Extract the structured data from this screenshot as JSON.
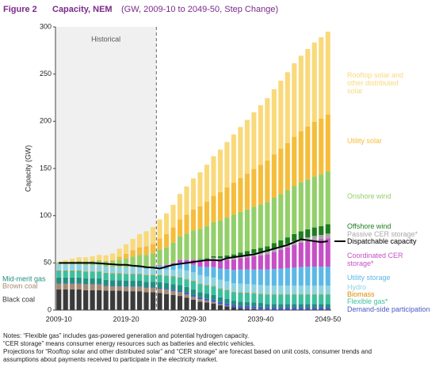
{
  "chart_data": {
    "type": "bar",
    "figure_label": "Figure 2",
    "title": "Capacity, NEM",
    "subtitle": "(GW, 2009-10 to 2049-50, Step Change)",
    "y_label": "Capacity (GW)",
    "annotation": "Historical",
    "stacked": true,
    "ylim": [
      0,
      300
    ],
    "yticks": [
      0,
      50,
      100,
      150,
      200,
      250,
      300
    ],
    "categories": [
      "2009-10",
      null,
      null,
      null,
      null,
      null,
      null,
      null,
      null,
      null,
      "2019-20",
      null,
      null,
      null,
      null,
      null,
      null,
      null,
      null,
      null,
      "2029-30",
      null,
      null,
      null,
      null,
      null,
      null,
      null,
      null,
      null,
      "2039-40",
      null,
      null,
      null,
      null,
      null,
      null,
      null,
      null,
      null,
      "2049-50"
    ],
    "series": [
      {
        "name": "Black coal",
        "color": "#3a3a3a",
        "values": [
          22,
          22,
          22,
          22,
          21,
          21,
          21,
          20.5,
          20.5,
          20.5,
          20,
          20,
          20,
          19,
          19,
          18,
          17,
          16,
          15,
          13,
          11,
          9,
          8,
          7,
          5,
          4,
          3,
          2,
          1.5,
          1,
          0.5,
          0,
          0,
          0,
          0,
          0,
          0,
          0,
          0,
          0,
          0
        ]
      },
      {
        "name": "Brown coal",
        "color": "#a68a70",
        "values": [
          6,
          6,
          6,
          6,
          6,
          6,
          6,
          5,
          4.5,
          4.5,
          4.5,
          4.5,
          4.5,
          4.5,
          4.5,
          4.5,
          4.5,
          4,
          4,
          3.5,
          3,
          2.5,
          2,
          1.5,
          1,
          0.5,
          0,
          0,
          0,
          0,
          0,
          0,
          0,
          0,
          0,
          0,
          0,
          0,
          0,
          0,
          0
        ]
      },
      {
        "name": "Demand-side participation",
        "color": "#4a5bc4",
        "values": [
          0.5,
          0.5,
          0.5,
          0.5,
          0.5,
          0.5,
          0.5,
          0.5,
          0.5,
          0.5,
          0.5,
          0.5,
          0.5,
          0.5,
          0.5,
          1,
          1,
          1.5,
          1.5,
          2,
          2,
          2,
          2,
          2.5,
          2.5,
          2.5,
          2.5,
          2.5,
          3,
          3,
          3,
          3,
          3,
          3,
          3,
          3,
          3,
          3,
          3,
          3,
          3
        ]
      },
      {
        "name": "Mid-merit gas",
        "color": "#1f8f80",
        "values": [
          6,
          6,
          6,
          6,
          6,
          6,
          6,
          6,
          6,
          6,
          6,
          6,
          6,
          6,
          6,
          6,
          6,
          6,
          6,
          6,
          6,
          5.5,
          5.5,
          5,
          5,
          5,
          4.5,
          4.5,
          4,
          4,
          4,
          3.5,
          3.5,
          3.5,
          3.5,
          3.5,
          3.5,
          3.5,
          3.5,
          3.5,
          3.5
        ]
      },
      {
        "name": "Flexible gas*",
        "color": "#3cbf9f",
        "values": [
          7,
          7,
          7,
          7,
          7,
          7,
          7,
          7,
          7,
          7,
          7,
          7,
          7,
          7,
          7,
          7.5,
          7.5,
          8,
          8,
          8,
          8.5,
          8.5,
          8.5,
          9,
          9,
          9,
          9,
          9.5,
          9.5,
          9.5,
          9.5,
          10,
          10,
          10,
          10,
          10,
          10,
          10,
          10,
          10,
          10
        ]
      },
      {
        "name": "Biomass",
        "color": "#e08a00",
        "values": [
          0.5,
          0.5,
          0.5,
          0.5,
          0.5,
          0.5,
          0.5,
          0.5,
          0.5,
          0.5,
          0.5,
          0.5,
          0.5,
          0.5,
          0.5,
          0.5,
          0.5,
          0.5,
          0.5,
          0.5,
          0.5,
          0.5,
          0.5,
          0.5,
          0.5,
          0.5,
          0.5,
          0.5,
          0.5,
          0.5,
          0.5,
          0.5,
          0.5,
          0.5,
          0.5,
          0.5,
          0.5,
          0.5,
          0.5,
          0.5,
          0.5
        ]
      },
      {
        "name": "Hydro",
        "color": "#8fd3e0",
        "values": [
          6.5,
          6.5,
          6.5,
          6.5,
          6.5,
          6.5,
          6.5,
          6.5,
          6.5,
          6.5,
          6.5,
          6.5,
          6.5,
          6.5,
          6.5,
          6.5,
          6.5,
          6.5,
          9,
          9,
          9,
          9,
          9,
          9,
          9,
          9,
          9,
          9,
          9,
          9,
          9,
          9,
          9,
          9,
          9,
          9,
          9,
          9,
          9,
          9,
          9
        ]
      },
      {
        "name": "Utility storage",
        "color": "#5bb8e6",
        "values": [
          0,
          0,
          0,
          0,
          0,
          0,
          0,
          0,
          0,
          0,
          0.2,
          0.5,
          1,
          1.5,
          2,
          3,
          4,
          5,
          6,
          7,
          8,
          9,
          10,
          11,
          12,
          13,
          14,
          15,
          15.5,
          16,
          16.5,
          17,
          17.5,
          18,
          18.5,
          19,
          19.5,
          20,
          20,
          20,
          20
        ]
      },
      {
        "name": "Coordinated CER storage*",
        "color": "#c64fc6",
        "values": [
          0,
          0,
          0,
          0,
          0,
          0,
          0,
          0,
          0,
          0,
          0,
          0,
          0,
          0,
          0,
          0.5,
          1,
          2,
          3,
          4,
          5,
          6,
          7,
          8,
          9,
          10,
          11,
          12,
          13,
          14,
          15,
          16,
          18,
          20,
          22,
          24,
          26,
          27,
          28,
          29,
          30
        ]
      },
      {
        "name": "Passive CER storage*",
        "color": "#a8a8a8",
        "values": [
          0,
          0,
          0,
          0,
          0,
          0,
          0,
          0,
          0,
          0,
          0,
          0,
          0,
          0,
          0,
          0.5,
          0.5,
          1,
          1,
          1,
          1.5,
          1.5,
          1.5,
          2,
          2,
          2,
          2.5,
          2.5,
          2.5,
          3,
          3,
          3,
          3.5,
          3.5,
          3.5,
          4,
          4,
          4,
          4.5,
          4.5,
          5
        ]
      },
      {
        "name": "Offshore wind",
        "color": "#1e7d1e",
        "values": [
          0,
          0,
          0,
          0,
          0,
          0,
          0,
          0,
          0,
          0,
          0,
          0,
          0,
          0,
          0,
          0,
          0,
          0,
          0,
          0,
          0,
          0.5,
          1,
          1.5,
          2,
          2.5,
          3,
          3.5,
          4,
          4.5,
          5,
          5.5,
          6,
          6.5,
          7,
          7.5,
          8,
          8.5,
          9,
          9.5,
          10
        ]
      },
      {
        "name": "Onshore wind",
        "color": "#93cf6a",
        "values": [
          2,
          2.5,
          3,
          3.5,
          4,
          4.5,
          5,
          5.5,
          6.5,
          8,
          9.5,
          11,
          12.5,
          13,
          14,
          16,
          18,
          21,
          24,
          27,
          30,
          32,
          34,
          36,
          38,
          40,
          42,
          43,
          44,
          45,
          46,
          47,
          48,
          49,
          50,
          51,
          52,
          53,
          54,
          55,
          56
        ]
      },
      {
        "name": "Utility solar",
        "color": "#f5bd3a",
        "values": [
          0,
          0,
          0,
          0,
          0,
          0,
          0.5,
          0.5,
          1,
          3,
          5,
          7,
          8,
          9,
          10,
          12,
          14,
          16,
          18,
          20,
          22,
          24,
          26,
          28,
          30,
          32,
          34,
          36,
          38,
          40,
          42,
          44,
          46,
          48,
          50,
          52,
          54,
          56,
          58,
          59,
          60
        ]
      },
      {
        "name": "Rooftop solar and other distributed solar",
        "color": "#f9d97a",
        "values": [
          1,
          2,
          3,
          4,
          4.5,
          5,
          5.5,
          6,
          7,
          8.5,
          10,
          12,
          14,
          16,
          18,
          20,
          22,
          24,
          27,
          30,
          33,
          36,
          39,
          42,
          45,
          48,
          51,
          54,
          57,
          60,
          63,
          66,
          69,
          72,
          75,
          78,
          80,
          82,
          84,
          86,
          88
        ]
      }
    ],
    "line": {
      "name": "Dispatchable capacity",
      "color": "#000000",
      "values": [
        50,
        50,
        50,
        50,
        50,
        50,
        49.5,
        49,
        48.5,
        48,
        48,
        47,
        46.5,
        45.5,
        45,
        44,
        46,
        48,
        49,
        50,
        51,
        52,
        53,
        53,
        52.5,
        55,
        56,
        57,
        58,
        59,
        61,
        63,
        65,
        67,
        69,
        72,
        75,
        74,
        73,
        72,
        73
      ]
    }
  },
  "notes": [
    "Notes: “Flexible gas” includes gas-powered generation and potential hydrogen capacity.",
    "“CER storage” means consumer energy resources such as batteries and electric vehicles.",
    "Projections for “Rooftop solar and other distributed solar” and “CER storage” are forecast based on unit costs, consumer trends and",
    "assumptions about payments received to participate in the electricity market."
  ]
}
